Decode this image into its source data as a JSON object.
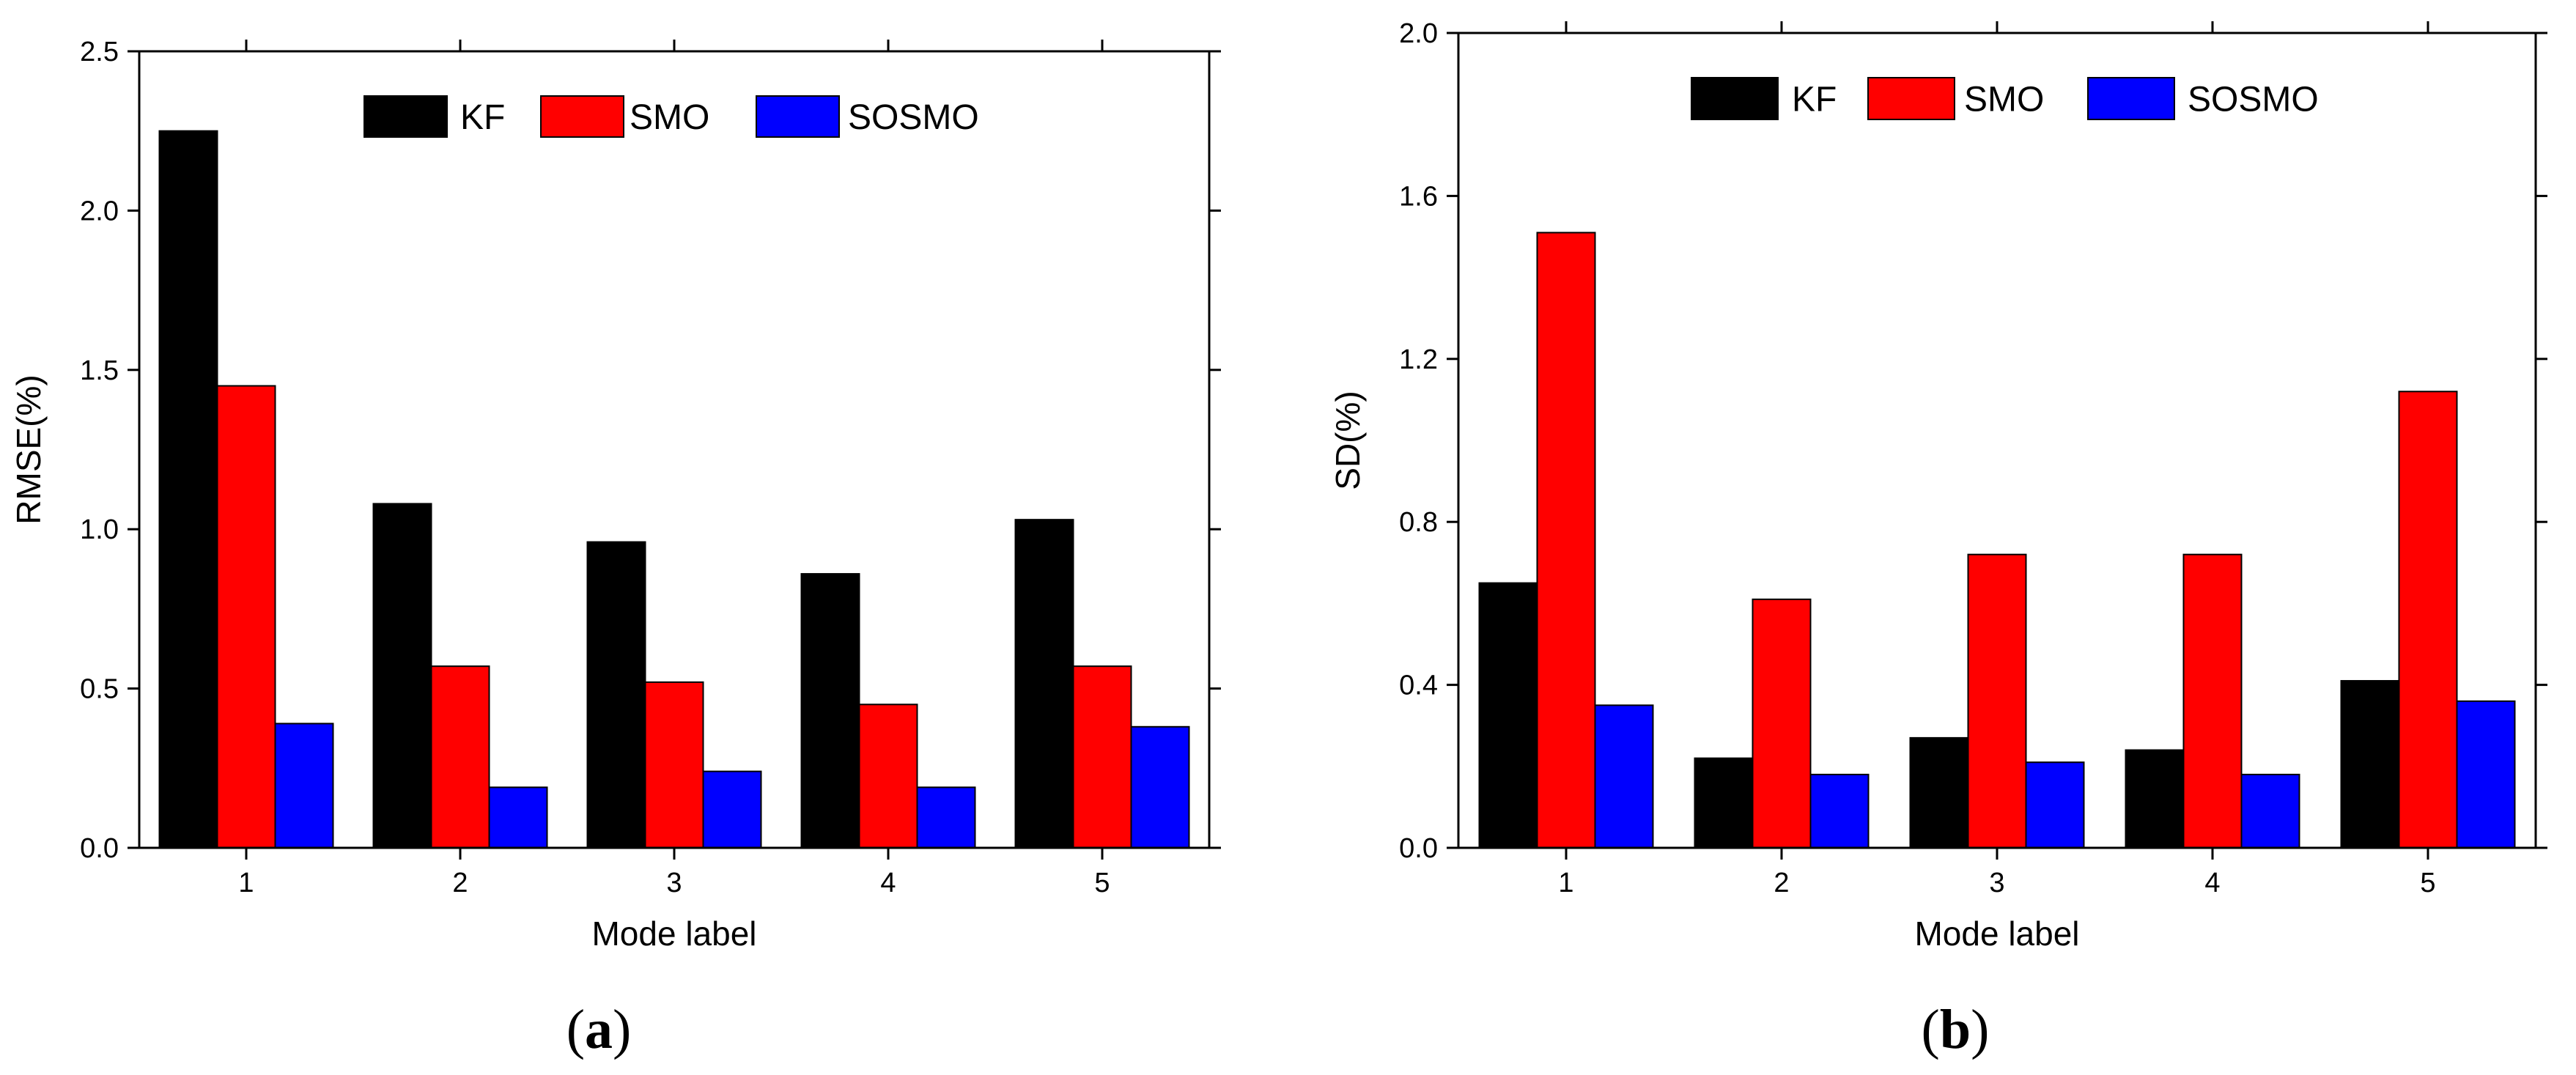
{
  "chart_data": [
    {
      "type": "bar",
      "panel_label": "a",
      "title": "",
      "xlabel": "Mode label",
      "ylabel": "RMSE(%)",
      "categories": [
        "1",
        "2",
        "3",
        "4",
        "5"
      ],
      "ylim": [
        0,
        2.5
      ],
      "yticks": [
        "0.0",
        "0.5",
        "1.0",
        "1.5",
        "2.0",
        "2.5"
      ],
      "legend_position": "top",
      "grid": false,
      "series": [
        {
          "name": "KF",
          "color": "#000000",
          "values": [
            2.25,
            1.08,
            0.96,
            0.86,
            1.03
          ]
        },
        {
          "name": "SMO",
          "color": "#ff0000",
          "values": [
            1.45,
            0.57,
            0.52,
            0.45,
            0.57
          ]
        },
        {
          "name": "SOSMO",
          "color": "#0000ff",
          "values": [
            0.39,
            0.19,
            0.24,
            0.19,
            0.38
          ]
        }
      ]
    },
    {
      "type": "bar",
      "panel_label": "b",
      "title": "",
      "xlabel": "Mode label",
      "ylabel": "SD(%)",
      "categories": [
        "1",
        "2",
        "3",
        "4",
        "5"
      ],
      "ylim": [
        0,
        2.0
      ],
      "yticks": [
        "0.0",
        "0.4",
        "0.8",
        "1.2",
        "1.6",
        "2.0"
      ],
      "legend_position": "top",
      "grid": false,
      "series": [
        {
          "name": "KF",
          "color": "#000000",
          "values": [
            0.65,
            0.22,
            0.27,
            0.24,
            0.41
          ]
        },
        {
          "name": "SMO",
          "color": "#ff0000",
          "values": [
            1.51,
            0.61,
            0.72,
            0.72,
            1.12
          ]
        },
        {
          "name": "SOSMO",
          "color": "#0000ff",
          "values": [
            0.35,
            0.18,
            0.21,
            0.18,
            0.36
          ]
        }
      ]
    }
  ]
}
